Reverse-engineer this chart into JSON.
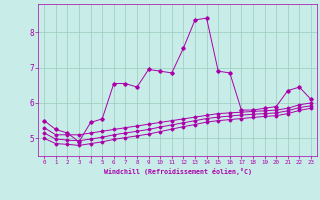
{
  "xlabel": "Windchill (Refroidissement éolien,°C)",
  "x_ticks": [
    0,
    1,
    2,
    3,
    4,
    5,
    6,
    7,
    8,
    9,
    10,
    11,
    12,
    13,
    14,
    15,
    16,
    17,
    18,
    19,
    20,
    21,
    22,
    23
  ],
  "ylim": [
    4.5,
    8.8
  ],
  "xlim": [
    -0.5,
    23.5
  ],
  "yticks": [
    5,
    6,
    7,
    8
  ],
  "bg_color": "#c8ede8",
  "plot_bg_color": "#c8ede8",
  "line_color": "#aa00aa",
  "grid_color": "#99ccbb",
  "line1_y": [
    5.5,
    5.25,
    5.15,
    4.9,
    5.45,
    5.55,
    6.55,
    6.55,
    6.45,
    6.95,
    6.9,
    6.85,
    7.55,
    8.35,
    8.4,
    6.9,
    6.85,
    5.8,
    5.8,
    5.85,
    5.9,
    6.35,
    6.45,
    6.1
  ],
  "line2_y": [
    5.3,
    5.1,
    5.1,
    5.1,
    5.15,
    5.2,
    5.25,
    5.3,
    5.35,
    5.4,
    5.45,
    5.5,
    5.55,
    5.6,
    5.65,
    5.7,
    5.72,
    5.74,
    5.76,
    5.78,
    5.8,
    5.85,
    5.95,
    6.0
  ],
  "line3_y": [
    5.15,
    4.98,
    4.95,
    4.93,
    4.98,
    5.03,
    5.1,
    5.15,
    5.2,
    5.25,
    5.32,
    5.38,
    5.44,
    5.5,
    5.56,
    5.6,
    5.63,
    5.66,
    5.68,
    5.7,
    5.72,
    5.78,
    5.87,
    5.92
  ],
  "line4_y": [
    5.0,
    4.85,
    4.83,
    4.8,
    4.85,
    4.9,
    4.97,
    5.02,
    5.07,
    5.12,
    5.19,
    5.26,
    5.33,
    5.39,
    5.46,
    5.5,
    5.53,
    5.56,
    5.59,
    5.62,
    5.64,
    5.7,
    5.79,
    5.85
  ]
}
